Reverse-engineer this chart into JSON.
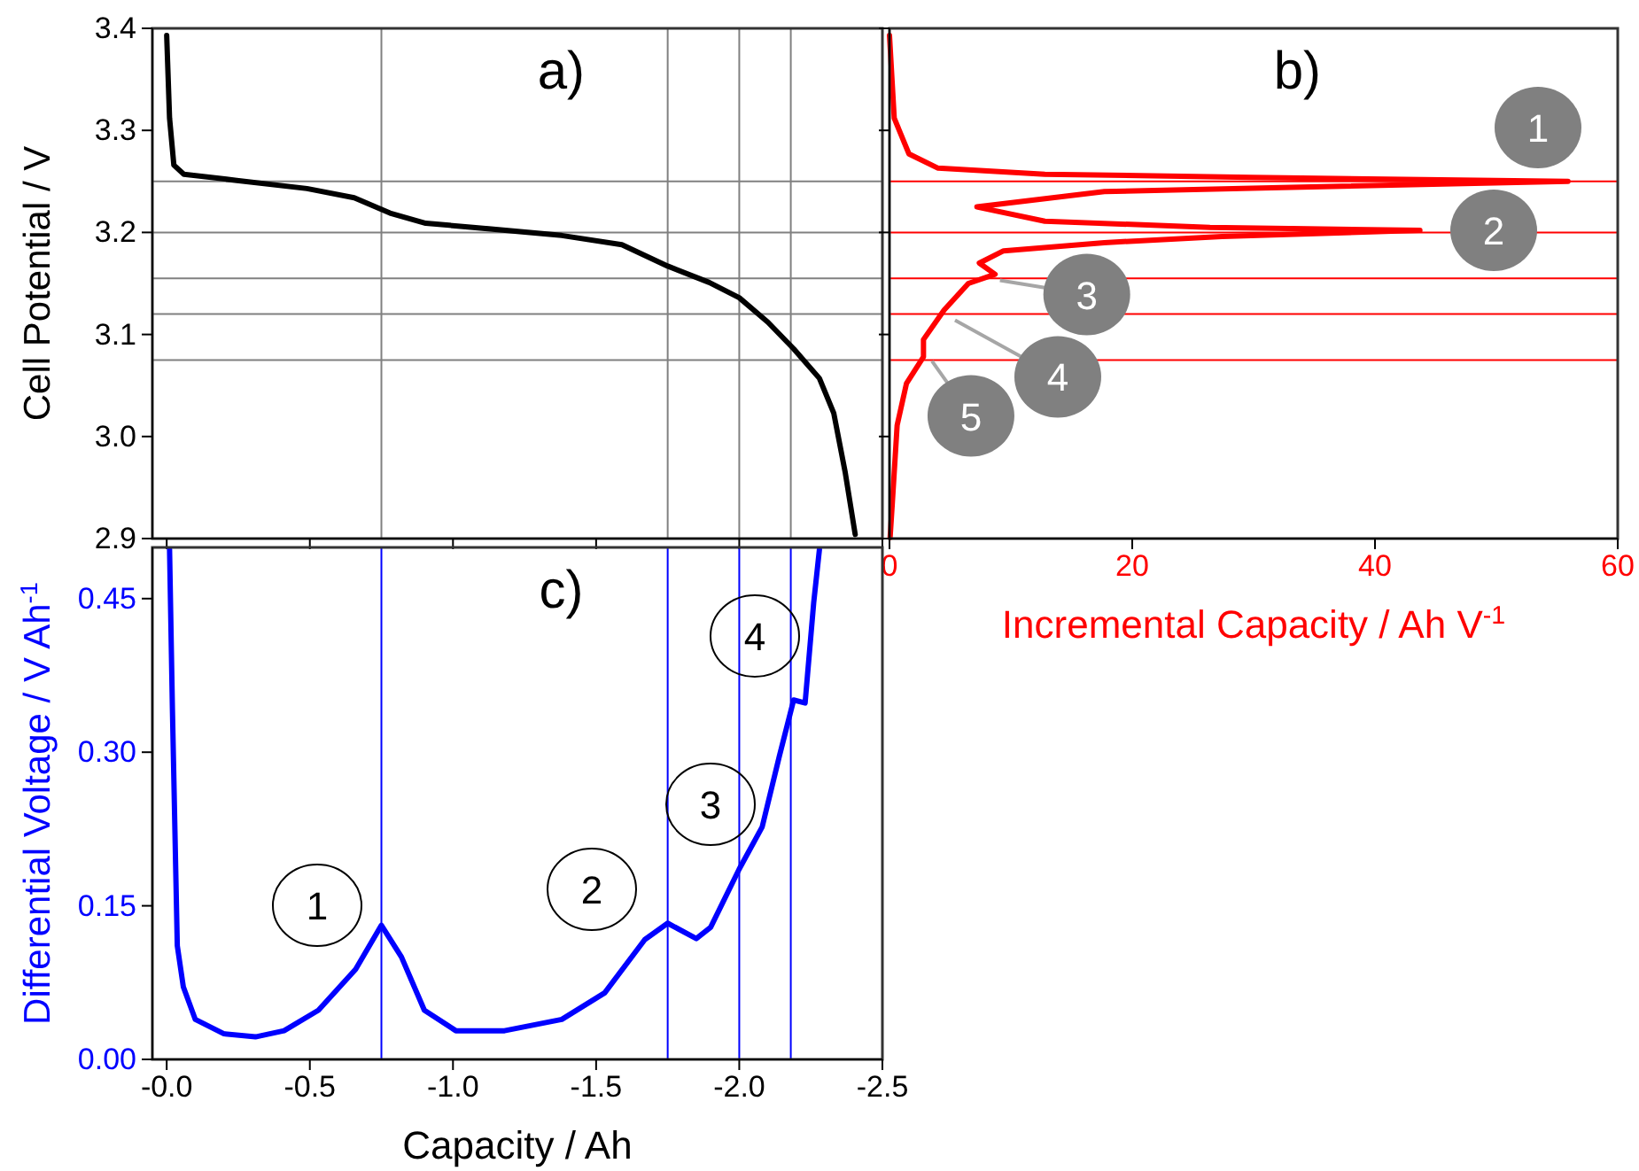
{
  "chart_data": [
    {
      "type": "line",
      "title": "a)",
      "ylabel": "Cell Potential / V",
      "xlim": [
        0.05,
        -2.5
      ],
      "xticks": [
        {
          "value": 0,
          "label": null
        },
        {
          "value": -0.5,
          "label": null
        },
        {
          "value": -1.0,
          "label": null
        },
        {
          "value": -1.5,
          "label": null
        },
        {
          "value": -2.0,
          "label": null
        },
        {
          "value": -2.5,
          "label": null
        }
      ],
      "ylim": [
        2.9,
        3.4
      ],
      "yticks": [
        {
          "value": 2.9,
          "label": "2.9"
        },
        {
          "value": 3.0,
          "label": "3.0"
        },
        {
          "value": 3.1,
          "label": "3.1"
        },
        {
          "value": 3.2,
          "label": "3.2"
        },
        {
          "value": 3.3,
          "label": "3.3"
        },
        {
          "value": 3.4,
          "label": "3.4"
        }
      ],
      "tick_labels": "y",
      "series": [
        {
          "color": "#000000",
          "x": [
            0.0,
            -0.01,
            -0.025,
            -0.06,
            -0.245,
            -0.49,
            -0.655,
            -0.78,
            -0.905,
            -1.07,
            -1.38,
            -1.59,
            -1.75,
            -1.895,
            -2.0,
            -2.1,
            -2.19,
            -2.28,
            -2.33,
            -2.37,
            -2.405
          ],
          "values": [
            3.393,
            3.312,
            3.266,
            3.257,
            3.251,
            3.243,
            3.234,
            3.219,
            3.209,
            3.205,
            3.197,
            3.188,
            3.167,
            3.151,
            3.136,
            3.112,
            3.086,
            3.057,
            3.023,
            2.965,
            2.904
          ]
        }
      ],
      "ref_lines": [
        {
          "axis": "x",
          "value": -0.75,
          "color": "#808080"
        },
        {
          "axis": "x",
          "value": -1.75,
          "color": "#808080"
        },
        {
          "axis": "x",
          "value": -2.0,
          "color": "#808080"
        },
        {
          "axis": "x",
          "value": -2.18,
          "color": "#808080"
        },
        {
          "axis": "y",
          "value": 3.25,
          "color": "#808080"
        },
        {
          "axis": "y",
          "value": 3.2,
          "color": "#808080"
        },
        {
          "axis": "y",
          "value": 3.155,
          "color": "#808080"
        },
        {
          "axis": "y",
          "value": 3.12,
          "color": "#808080"
        },
        {
          "axis": "y",
          "value": 3.075,
          "color": "#808080"
        }
      ]
    },
    {
      "type": "line",
      "title": "b)",
      "xlabel": "Incremental Capacity / Ah V$^{-1}$",
      "xlim": [
        0,
        60
      ],
      "xticks": [
        0,
        20,
        40,
        60
      ],
      "ylim": [
        2.9,
        3.4
      ],
      "yticks": [
        {
          "value": 2.9,
          "label": null
        },
        {
          "value": 3.0,
          "label": null
        },
        {
          "value": 3.1,
          "label": null
        },
        {
          "value": 3.2,
          "label": null
        },
        {
          "value": 3.3,
          "label": null
        },
        {
          "value": 3.4,
          "label": null
        }
      ],
      "tick_labels": "x",
      "series": [
        {
          "color": "#ff0000",
          "x": [
            0,
            0.39,
            1.6,
            4.0,
            12.8,
            29.8,
            55.9,
            32.3,
            17.7,
            7.2,
            12.8,
            26.4,
            43.7,
            27.4,
            17.7,
            9.4,
            7.4,
            8.7,
            6.5,
            4.5,
            2.8,
            2.8,
            1.4,
            0.63,
            0.24,
            0.05
          ],
          "values": [
            3.393,
            3.312,
            3.277,
            3.263,
            3.257,
            3.254,
            3.25,
            3.244,
            3.24,
            3.225,
            3.211,
            3.205,
            3.202,
            3.196,
            3.19,
            3.182,
            3.17,
            3.159,
            3.15,
            3.124,
            3.095,
            3.078,
            3.052,
            3.011,
            2.936,
            2.901
          ]
        }
      ],
      "ref_lines": [
        {
          "axis": "y",
          "value": 3.25,
          "color": "#ff0000"
        },
        {
          "axis": "y",
          "value": 3.2,
          "color": "#ff0000"
        },
        {
          "axis": "y",
          "value": 3.155,
          "color": "#ff0000"
        },
        {
          "axis": "y",
          "value": 3.12,
          "color": "#ff0000"
        },
        {
          "axis": "y",
          "value": 3.075,
          "color": "#ff0000"
        }
      ],
      "annotations": [
        "1",
        "2",
        {
          "text": "3",
          "x": 9.1,
          "y": 3.153
        },
        {
          "text": "4",
          "x": 5.4,
          "y": 3.114
        },
        {
          "text": "5",
          "x": 3.5,
          "y": 3.074
        }
      ]
    },
    {
      "type": "line",
      "title": "c)",
      "xlabel": "Capacity / Ah",
      "ylabel": "Differential Voltage / V Ah$^{-1}$",
      "xlim": [
        0.05,
        -2.5
      ],
      "xticks": [
        {
          "value": 0,
          "label": "-0.0"
        },
        {
          "value": -0.5,
          "label": "-0.5"
        },
        {
          "value": -1.0,
          "label": "-1.0"
        },
        {
          "value": -1.5,
          "label": "-1.5"
        },
        {
          "value": -2.0,
          "label": "-2.0"
        },
        {
          "value": -2.5,
          "label": "-2.5"
        }
      ],
      "ylim": [
        0,
        0.5
      ],
      "yticks": [
        {
          "value": 0,
          "label": "0.00"
        },
        {
          "value": 0.15,
          "label": "0.15"
        },
        {
          "value": 0.3,
          "label": "0.30"
        },
        {
          "value": 0.45,
          "label": "0.45"
        }
      ],
      "series": [
        {
          "color": "#0000ff",
          "x": [
            -0.01,
            -0.02,
            -0.037,
            -0.058,
            -0.1,
            -0.2,
            -0.31,
            -0.41,
            -0.53,
            -0.66,
            -0.75,
            -0.82,
            -0.9,
            -1.01,
            -1.18,
            -1.38,
            -1.53,
            -1.67,
            -1.75,
            -1.85,
            -1.9,
            -2.0,
            -2.08,
            -2.14,
            -2.19,
            -2.23,
            -2.26,
            -2.28
          ],
          "values": [
            0.498,
            0.342,
            0.111,
            0.071,
            0.039,
            0.025,
            0.022,
            0.028,
            0.048,
            0.088,
            0.131,
            0.1,
            0.048,
            0.028,
            0.028,
            0.039,
            0.065,
            0.117,
            0.133,
            0.118,
            0.129,
            0.186,
            0.227,
            0.296,
            0.351,
            0.348,
            0.446,
            0.498
          ]
        }
      ],
      "ref_lines": [
        {
          "axis": "x",
          "value": -0.75,
          "color": "#0000ff"
        },
        {
          "axis": "x",
          "value": -1.75,
          "color": "#0000ff"
        },
        {
          "axis": "x",
          "value": -2.0,
          "color": "#0000ff"
        },
        {
          "axis": "x",
          "value": -2.18,
          "color": "#0000ff"
        }
      ],
      "annotations": [
        "1",
        "2",
        "3",
        "4"
      ]
    }
  ]
}
